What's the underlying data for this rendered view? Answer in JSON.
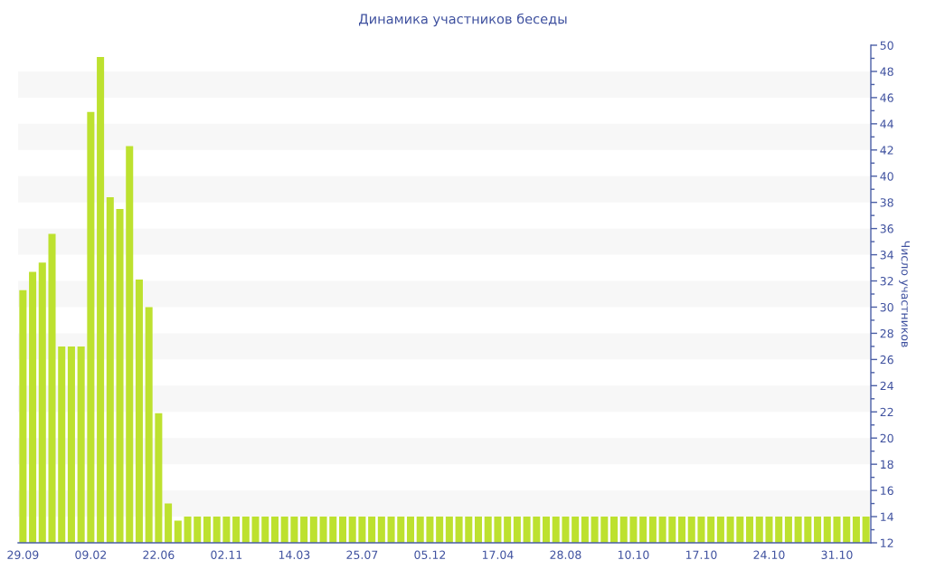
{
  "chart_data": {
    "type": "bar",
    "title": "Динамика участников беседы",
    "ylabel": "Число участников",
    "categories": [
      "29.09",
      null,
      null,
      null,
      null,
      null,
      null,
      "09.02",
      null,
      null,
      null,
      null,
      null,
      null,
      "22.06",
      null,
      null,
      null,
      null,
      null,
      null,
      "02.11",
      null,
      null,
      null,
      null,
      null,
      null,
      "14.03",
      null,
      null,
      null,
      null,
      null,
      null,
      "25.07",
      null,
      null,
      null,
      null,
      null,
      null,
      "05.12",
      null,
      null,
      null,
      null,
      null,
      null,
      "17.04",
      null,
      null,
      null,
      null,
      null,
      null,
      "28.08",
      null,
      null,
      null,
      null,
      null,
      null,
      "10.10",
      null,
      null,
      null,
      null,
      null,
      null,
      "17.10",
      null,
      null,
      null,
      null,
      null,
      null,
      "24.10",
      null,
      null,
      null,
      null,
      null,
      null,
      "31.10",
      null,
      null,
      null
    ],
    "values": [
      31.3,
      32.7,
      33.4,
      35.6,
      27,
      27,
      27,
      44.9,
      49.1,
      38.4,
      37.5,
      42.3,
      32.1,
      30,
      21.9,
      15,
      13.7,
      14,
      14,
      14,
      14,
      14,
      14,
      14,
      14,
      14,
      14,
      14,
      14,
      14,
      14,
      14,
      14,
      14,
      14,
      14,
      14,
      14,
      14,
      14,
      14,
      14,
      14,
      14,
      14,
      14,
      14,
      14,
      14,
      14,
      14,
      14,
      14,
      14,
      14,
      14,
      14,
      14,
      14,
      14,
      14,
      14,
      14,
      14,
      14,
      14,
      14,
      14,
      14,
      14,
      14,
      14,
      14,
      14,
      14,
      14,
      14,
      14,
      14,
      14,
      14,
      14,
      14,
      14,
      14,
      14,
      14,
      14
    ],
    "color": "#bde12f",
    "ylim": [
      12,
      50
    ],
    "yticks": [
      12,
      14,
      16,
      18,
      20,
      22,
      24,
      26,
      28,
      30,
      32,
      34,
      36,
      38,
      40,
      42,
      44,
      46,
      48,
      50
    ],
    "bands": [
      {
        "axis": "y",
        "from": 14,
        "to": 16,
        "color": "#f7f7f7"
      },
      {
        "axis": "y",
        "from": 18,
        "to": 20,
        "color": "#f7f7f7"
      },
      {
        "axis": "y",
        "from": 22,
        "to": 24,
        "color": "#f7f7f7"
      },
      {
        "axis": "y",
        "from": 26,
        "to": 28,
        "color": "#f7f7f7"
      },
      {
        "axis": "y",
        "from": 30,
        "to": 32,
        "color": "#f7f7f7"
      },
      {
        "axis": "y",
        "from": 34,
        "to": 36,
        "color": "#f7f7f7"
      },
      {
        "axis": "y",
        "from": 38,
        "to": 40,
        "color": "#f7f7f7"
      },
      {
        "axis": "y",
        "from": 42,
        "to": 44,
        "color": "#f7f7f7"
      },
      {
        "axis": "y",
        "from": 46,
        "to": 48,
        "color": "#f7f7f7"
      }
    ]
  }
}
